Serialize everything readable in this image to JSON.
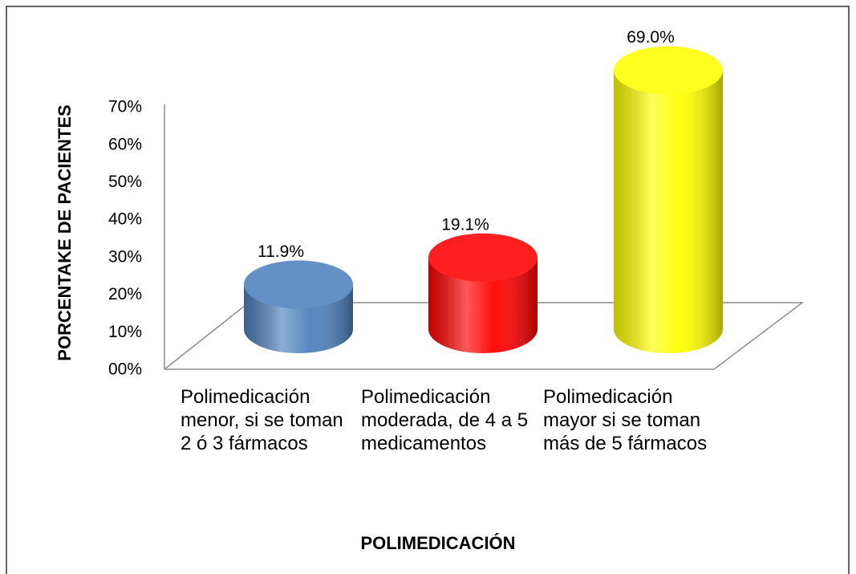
{
  "chart_data": {
    "type": "cylinder-bar",
    "y_label": "PORCENTAKE DE PACIENTES",
    "x_label": "POLIMEDICACIÓN",
    "categories": [
      "Polimedicación menor, si se toman 2 ó 3 fármacos",
      "Polimedicación moderada, de 4 a 5 medicamentos",
      "Polimedicación mayor si se toman más de 5 fármacos"
    ],
    "values": [
      11.9,
      19.1,
      69.0
    ],
    "value_labels": [
      "11.9%",
      "19.1%",
      "69.0%"
    ],
    "colors": [
      "#4f81bd",
      "#ff0000",
      "#ffff00"
    ],
    "ylim": [
      0,
      70
    ],
    "yticks": [
      {
        "value": 0,
        "label": "00%"
      },
      {
        "value": 10,
        "label": "10%"
      },
      {
        "value": 20,
        "label": "20%"
      },
      {
        "value": 30,
        "label": "30%"
      },
      {
        "value": 40,
        "label": "40%"
      },
      {
        "value": 50,
        "label": "50%"
      },
      {
        "value": 60,
        "label": "60%"
      },
      {
        "value": 70,
        "label": "70%"
      }
    ]
  }
}
